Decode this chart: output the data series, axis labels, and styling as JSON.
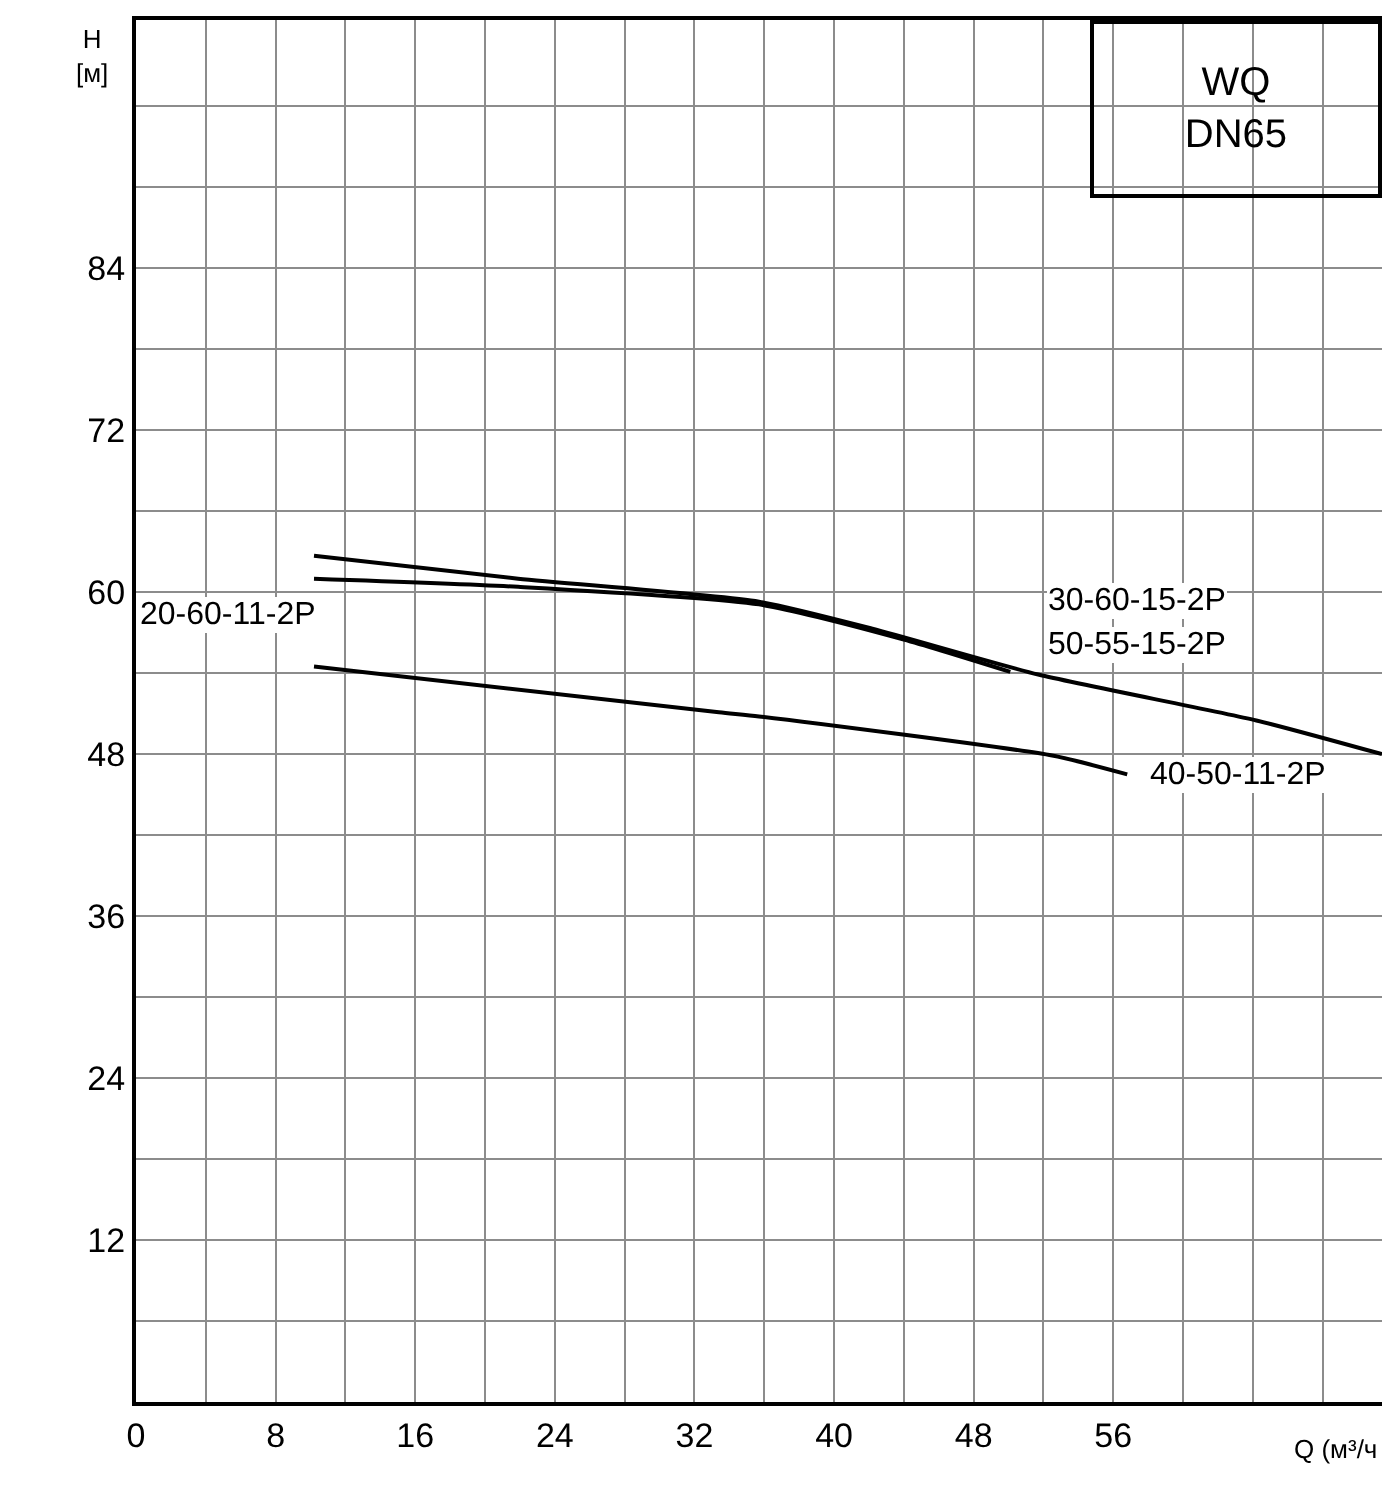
{
  "chart_data": {
    "type": "line",
    "title": "WQ\nDN65",
    "xlabel": "Q (м³/ч",
    "ylabel": "H\n[м]",
    "series": [
      {
        "color": "#000000",
        "x": [
          10.2,
          21.9,
          35.7,
          42.2,
          51.7,
          64.2,
          71.4
        ],
        "values": [
          62.7,
          61.0,
          59.3,
          57.3,
          53.9,
          50.5,
          48.0
        ]
      },
      {
        "color": "#000000",
        "x": [
          10.2,
          21.9,
          35.7,
          44.0,
          50.1
        ],
        "values": [
          61.0,
          60.4,
          59.1,
          56.5,
          54.1
        ]
      },
      {
        "color": "#000000",
        "x": [
          10.2,
          33.4,
          35.7,
          52.5,
          56.8
        ],
        "values": [
          54.5,
          51.1,
          50.8,
          47.9,
          46.5
        ]
      }
    ],
    "annotations": [
      "20-60-11-2P",
      "30-60-15-2P",
      "50-55-15-2P",
      "40-50-11-2P"
    ],
    "xlim": [
      0,
      71.4
    ],
    "ylim": [
      0,
      102.4
    ],
    "xticks": [
      0,
      {
        "value": 4,
        "label": null
      },
      8,
      {
        "value": 12,
        "label": null
      },
      16,
      {
        "value": 20,
        "label": null
      },
      24,
      {
        "value": 28,
        "label": null
      },
      32,
      {
        "value": 36,
        "label": null
      },
      40,
      {
        "value": 44,
        "label": null
      },
      48,
      {
        "value": 52,
        "label": null
      },
      56,
      {
        "value": 60,
        "label": null
      },
      {
        "value": 64,
        "label": null
      },
      {
        "value": 68,
        "label": null
      }
    ],
    "yticks": [
      {
        "value": 6,
        "label": null
      },
      12,
      {
        "value": 18,
        "label": null
      },
      24,
      {
        "value": 30,
        "label": null
      },
      36,
      {
        "value": 42,
        "label": null
      },
      48,
      {
        "value": 54,
        "label": null
      },
      60,
      {
        "value": 66,
        "label": null
      },
      72,
      {
        "value": 78,
        "label": null
      },
      84,
      {
        "value": 90,
        "label": null
      },
      {
        "value": 96,
        "label": null
      }
    ],
    "grid": true,
    "marker": "none",
    "line_style": "solid"
  }
}
